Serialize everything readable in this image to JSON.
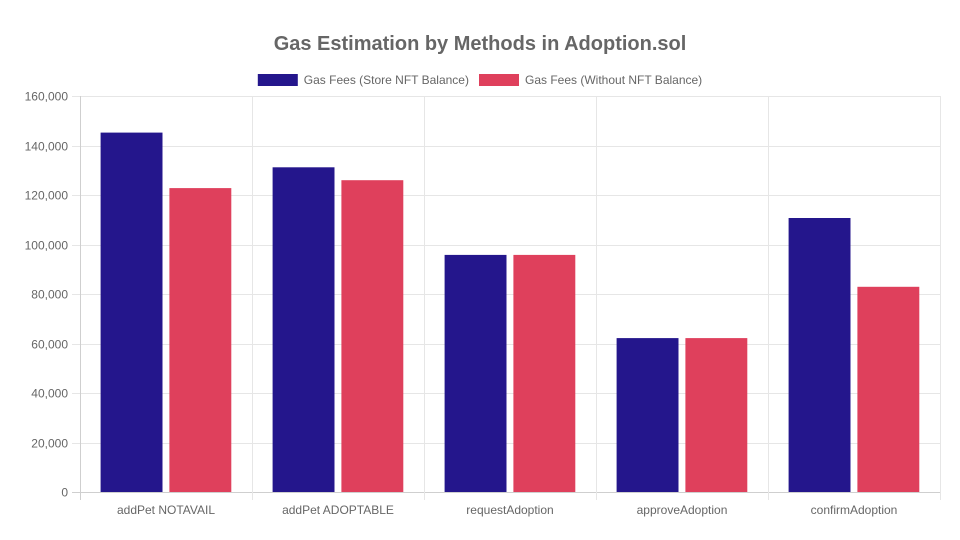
{
  "chart_data": {
    "type": "bar",
    "title": "Gas Estimation by Methods in Adoption.sol",
    "categories": [
      "addPet NOTAVAIL",
      "addPet ADOPTABLE",
      "requestAdoption",
      "approveAdoption",
      "confirmAdoption"
    ],
    "series": [
      {
        "name": "Gas Fees (Store NFT Balance)",
        "color": "#24168c",
        "values": [
          145200,
          131200,
          95800,
          62200,
          110700
        ]
      },
      {
        "name": "Gas Fees (Without NFT Balance)",
        "color": "#df405c",
        "values": [
          122800,
          126000,
          95800,
          62200,
          82900
        ]
      }
    ],
    "ylim": [
      0,
      160000
    ],
    "yticks": [
      "0",
      "20,000",
      "40,000",
      "60,000",
      "80,000",
      "100,000",
      "120,000",
      "140,000",
      "160,000"
    ],
    "xlabel": "",
    "ylabel": "",
    "grid": true,
    "legend_position": "top"
  }
}
